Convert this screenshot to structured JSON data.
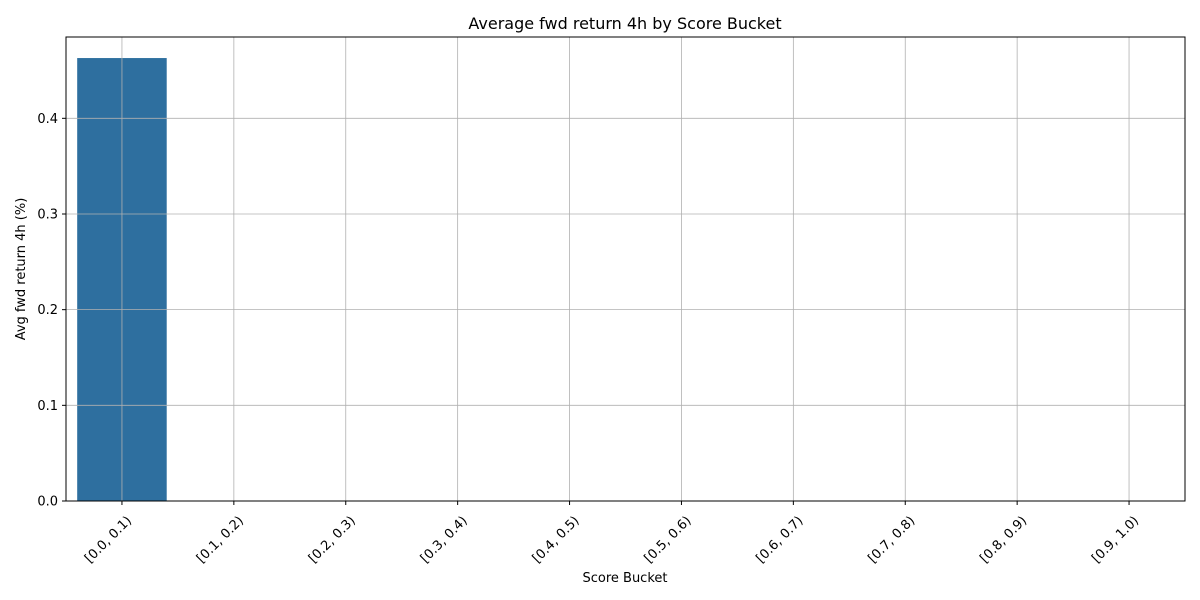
{
  "chart_data": {
    "type": "bar",
    "title": "Average fwd return 4h by Score Bucket",
    "xlabel": "Score Bucket",
    "ylabel": "Avg fwd return 4h (%)",
    "categories": [
      "[0.0, 0.1)",
      "[0.1, 0.2)",
      "[0.2, 0.3)",
      "[0.3, 0.4)",
      "[0.4, 0.5)",
      "[0.5, 0.6)",
      "[0.6, 0.7)",
      "[0.7, 0.8)",
      "[0.8, 0.9)",
      "[0.9, 1.0)"
    ],
    "values": [
      0.463,
      0,
      0,
      0,
      0,
      0,
      0,
      0,
      0,
      0
    ],
    "ylim": [
      0,
      0.485
    ],
    "yticks": [
      0.0,
      0.1,
      0.2,
      0.3,
      0.4
    ],
    "ytick_labels": [
      "0.0",
      "0.1",
      "0.2",
      "0.3",
      "0.4"
    ],
    "grid": true,
    "bar_color": "#2e6f9f"
  }
}
